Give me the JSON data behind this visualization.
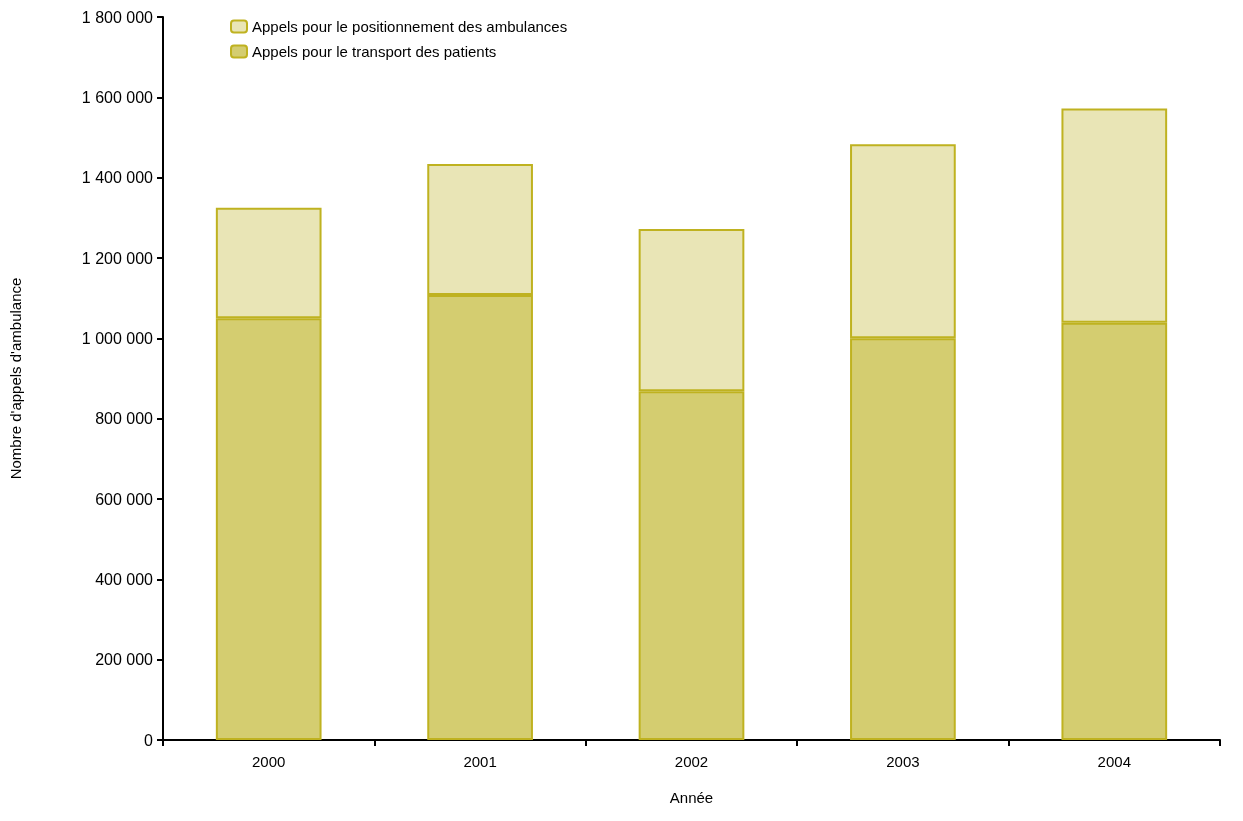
{
  "chart_data": {
    "type": "bar",
    "stacked": true,
    "xlabel": "Année",
    "ylabel": "Nombre d'appels d'ambulance",
    "categories": [
      "2000",
      "2001",
      "2002",
      "2003",
      "2004"
    ],
    "series": [
      {
        "name": "Appels pour le transport des patients",
        "color": "#d4cd70",
        "values": [
          1050000,
          1108000,
          868000,
          1000000,
          1039000
        ]
      },
      {
        "name": "Appels pour le positionnement des ambulances",
        "color": "#e9e5b6",
        "values": [
          275000,
          326000,
          404000,
          483000,
          533000
        ]
      }
    ],
    "ylim": [
      0,
      1800000
    ],
    "yticks": [
      {
        "value": 0,
        "label": "0"
      },
      {
        "value": 200000,
        "label": "200 000"
      },
      {
        "value": 400000,
        "label": "400 000"
      },
      {
        "value": 600000,
        "label": "600 000"
      },
      {
        "value": 800000,
        "label": "800 000"
      },
      {
        "value": 1000000,
        "label": "1 000 000"
      },
      {
        "value": 1200000,
        "label": "1 200 000"
      },
      {
        "value": 1400000,
        "label": "1 400 000"
      },
      {
        "value": 1600000,
        "label": "1 600 000"
      },
      {
        "value": 1800000,
        "label": "1 800 000"
      }
    ],
    "grid": false,
    "legend": "top left"
  }
}
